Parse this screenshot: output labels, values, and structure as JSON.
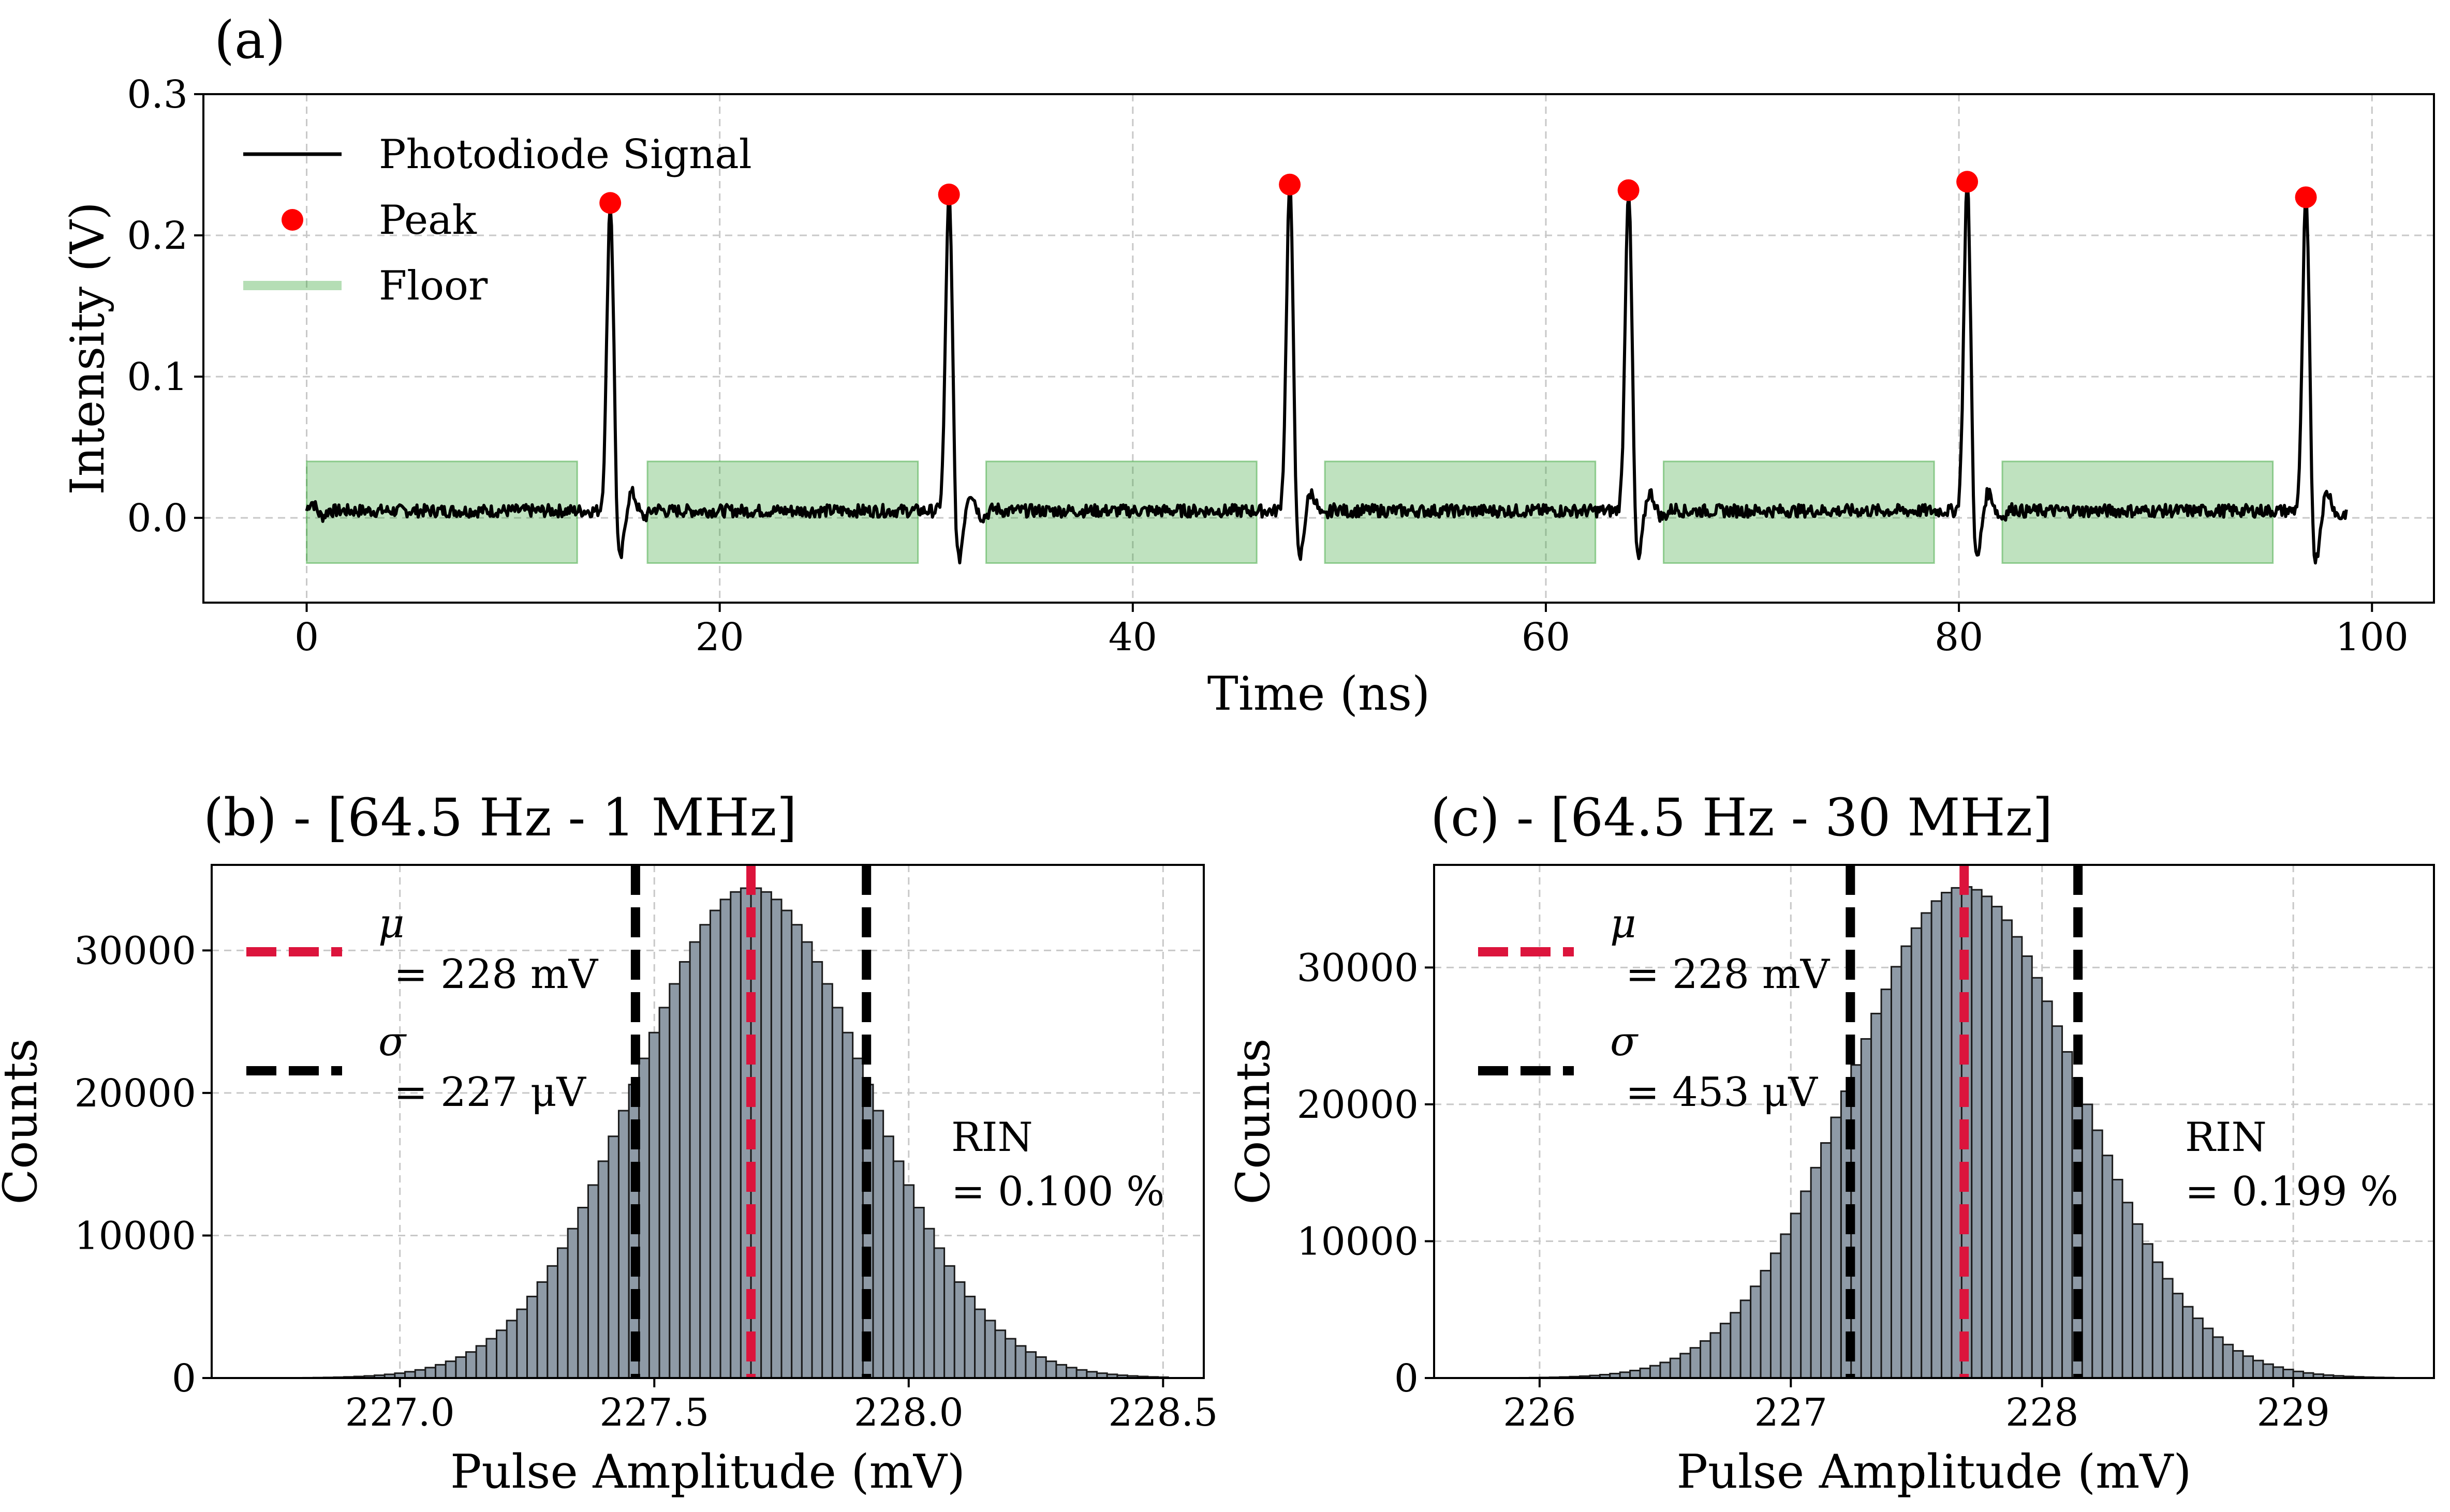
{
  "chart_data": [
    {
      "panel": "(a)",
      "type": "line",
      "title": "(a)",
      "xlabel": "Time (ns)",
      "ylabel": "Intensity (V)",
      "xlim": [
        -5,
        103
      ],
      "ylim": [
        -0.06,
        0.3
      ],
      "xticks": [
        0,
        20,
        40,
        60,
        80,
        100
      ],
      "yticks": [
        0.0,
        0.1,
        0.2,
        0.3
      ],
      "xtick_labels": [
        "0",
        "20",
        "40",
        "60",
        "80",
        "100"
      ],
      "ytick_labels": [
        "0.0",
        "0.1",
        "0.2",
        "0.3"
      ],
      "grid": true,
      "legend_position": "top-left",
      "legend": [
        "Photodiode Signal",
        "Peak",
        "Floor"
      ],
      "series": [
        {
          "name": "Photodiode Signal",
          "color": "#000000",
          "x_range": [
            0,
            98.8
          ],
          "baseline": 0.005,
          "pulse_times": [
            14.7,
            31.1,
            47.6,
            64.0,
            80.4,
            96.8
          ]
        },
        {
          "name": "Peak",
          "color": "#ff0000",
          "x": [
            14.7,
            31.1,
            47.6,
            64.0,
            80.4,
            96.8
          ],
          "y": [
            0.223,
            0.229,
            0.236,
            0.232,
            0.238,
            0.227
          ]
        },
        {
          "name": "Floor",
          "color": "#2ca02c",
          "ymin": -0.032,
          "ymax": 0.04,
          "intervals": [
            [
              0,
              13.1
            ],
            [
              16.5,
              29.6
            ],
            [
              32.9,
              46.0
            ],
            [
              49.3,
              62.4
            ],
            [
              65.7,
              78.8
            ],
            [
              82.1,
              95.2
            ]
          ]
        }
      ]
    },
    {
      "panel": "(b)",
      "type": "bar",
      "title": "(b)  - [64.5 Hz - 1 MHz]",
      "xlabel": "Pulse Amplitude (mV)",
      "ylabel": "Counts",
      "xlim": [
        226.63,
        228.58
      ],
      "ylim": [
        0,
        36000
      ],
      "xticks": [
        227.0,
        227.5,
        228.0,
        228.5
      ],
      "xtick_labels": [
        "227.0",
        "227.5",
        "228.0",
        "228.5"
      ],
      "yticks": [
        0,
        10000,
        20000,
        30000
      ],
      "ytick_labels": [
        "0",
        "10000",
        "20000",
        "30000"
      ],
      "grid": true,
      "histogram": {
        "mean": 227.69,
        "sigma": 0.227,
        "peak_count": 34400,
        "bin_width": 0.02,
        "range": [
          226.75,
          228.5
        ]
      },
      "mu_line": 227.69,
      "sigma_lines": [
        227.463,
        227.917
      ],
      "legend_position": "top-left",
      "legend": [
        {
          "symbol": "μ",
          "value": "= 228 mV",
          "color": "#dc143c"
        },
        {
          "symbol": "σ",
          "value": "= 227 μV",
          "color": "#000000"
        }
      ],
      "annotation": [
        "RIN",
        "= 0.100 %"
      ]
    },
    {
      "panel": "(c)",
      "type": "bar",
      "title": "(c)  - [64.5 Hz - 30 MHz]",
      "xlabel": "Pulse Amplitude (mV)",
      "ylabel": "Counts",
      "xlim": [
        225.58,
        229.56
      ],
      "ylim": [
        0,
        37500
      ],
      "xticks": [
        226,
        227,
        228,
        229
      ],
      "xtick_labels": [
        "226",
        "227",
        "228",
        "229"
      ],
      "yticks": [
        0,
        10000,
        20000,
        30000
      ],
      "ytick_labels": [
        "0",
        "10000",
        "20000",
        "30000"
      ],
      "grid": true,
      "histogram": {
        "mean": 227.69,
        "sigma": 0.453,
        "peak_count": 35900,
        "bin_width": 0.04,
        "range": [
          225.8,
          229.4
        ]
      },
      "mu_line": 227.69,
      "sigma_lines": [
        227.237,
        228.143
      ],
      "legend_position": "top-left",
      "legend": [
        {
          "symbol": "μ",
          "value": "= 228 mV",
          "color": "#dc143c"
        },
        {
          "symbol": "σ",
          "value": "= 453 μV",
          "color": "#000000"
        }
      ],
      "annotation": [
        "RIN",
        "= 0.199 %"
      ]
    }
  ]
}
